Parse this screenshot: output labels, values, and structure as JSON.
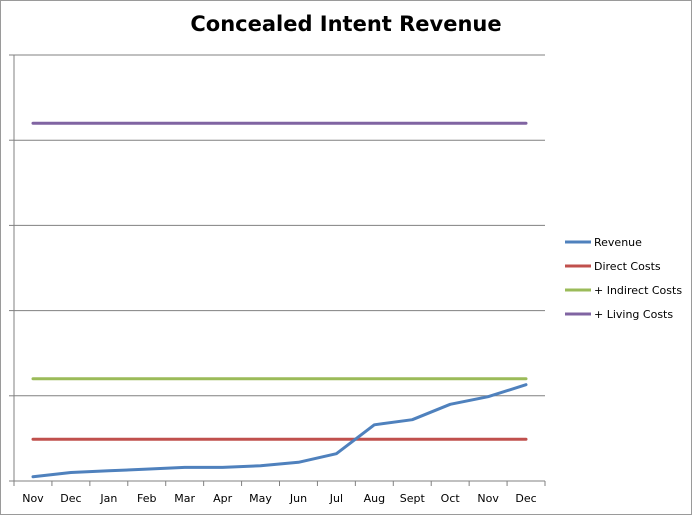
{
  "chart_data": {
    "type": "line",
    "title": "Concealed Intent Revenue",
    "xlabel": "",
    "ylabel": "",
    "categories": [
      "Nov",
      "Dec",
      "Jan",
      "Feb",
      "Mar",
      "Apr",
      "May",
      "Jun",
      "Jul",
      "Aug",
      "Sept",
      "Oct",
      "Nov",
      "Dec"
    ],
    "ylim": [
      0,
      5
    ],
    "grid": true,
    "legend": "right",
    "series": [
      {
        "name": "Revenue",
        "color": "#4f81bd",
        "values": [
          0.05,
          0.1,
          0.12,
          0.14,
          0.16,
          0.16,
          0.18,
          0.22,
          0.32,
          0.66,
          0.72,
          0.9,
          0.99,
          1.13
        ]
      },
      {
        "name": "Direct Costs",
        "color": "#c0504d",
        "values": [
          0.49,
          0.49,
          0.49,
          0.49,
          0.49,
          0.49,
          0.49,
          0.49,
          0.49,
          0.49,
          0.49,
          0.49,
          0.49,
          0.49
        ]
      },
      {
        "name": "+ Indirect Costs",
        "color": "#9bbb59",
        "values": [
          1.2,
          1.2,
          1.2,
          1.2,
          1.2,
          1.2,
          1.2,
          1.2,
          1.2,
          1.2,
          1.2,
          1.2,
          1.2,
          1.2
        ]
      },
      {
        "name": "+ Living Costs",
        "color": "#8064a2",
        "values": [
          4.2,
          4.2,
          4.2,
          4.2,
          4.2,
          4.2,
          4.2,
          4.2,
          4.2,
          4.2,
          4.2,
          4.2,
          4.2,
          4.2
        ]
      }
    ]
  }
}
